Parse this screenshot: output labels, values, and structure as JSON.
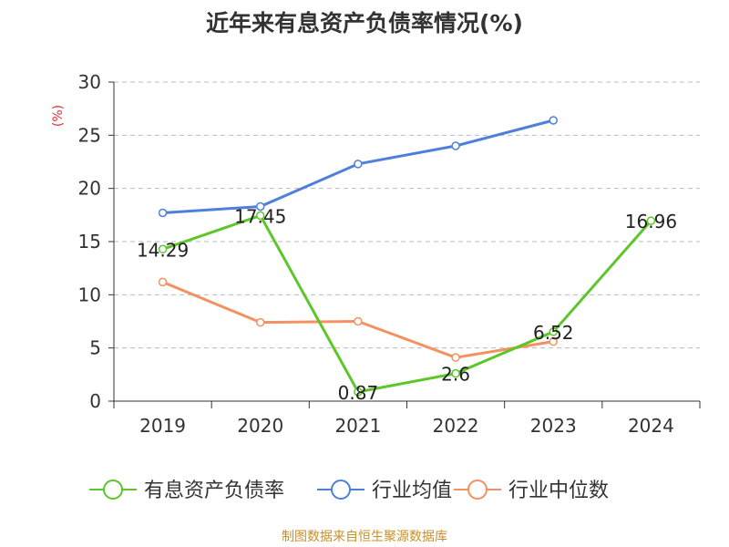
{
  "chart_data": {
    "type": "line",
    "title": "近年来有息资产负债率情况(%)",
    "ylabel": "(%)",
    "categories": [
      "2019",
      "2020",
      "2021",
      "2022",
      "2023",
      "2024"
    ],
    "ylim": [
      0,
      30
    ],
    "yticks": [
      0,
      5,
      10,
      15,
      20,
      25,
      30
    ],
    "grid": true,
    "legend_position": "bottom",
    "series": [
      {
        "name": "有息资产负债率",
        "color": "#5cc62a",
        "values": [
          14.29,
          17.45,
          0.87,
          2.6,
          6.52,
          16.96
        ],
        "labels": [
          "14.29",
          "17.45",
          "0.87",
          "2.6",
          "6.52",
          "16.96"
        ]
      },
      {
        "name": "行业均值",
        "color": "#4e7fdc",
        "values": [
          17.7,
          18.3,
          22.3,
          24.0,
          26.4,
          null
        ]
      },
      {
        "name": "行业中位数",
        "color": "#f39160",
        "values": [
          11.2,
          7.4,
          7.5,
          4.1,
          5.6,
          null
        ]
      }
    ]
  },
  "footer": {
    "source": "制图数据来自恒生聚源数据库"
  }
}
